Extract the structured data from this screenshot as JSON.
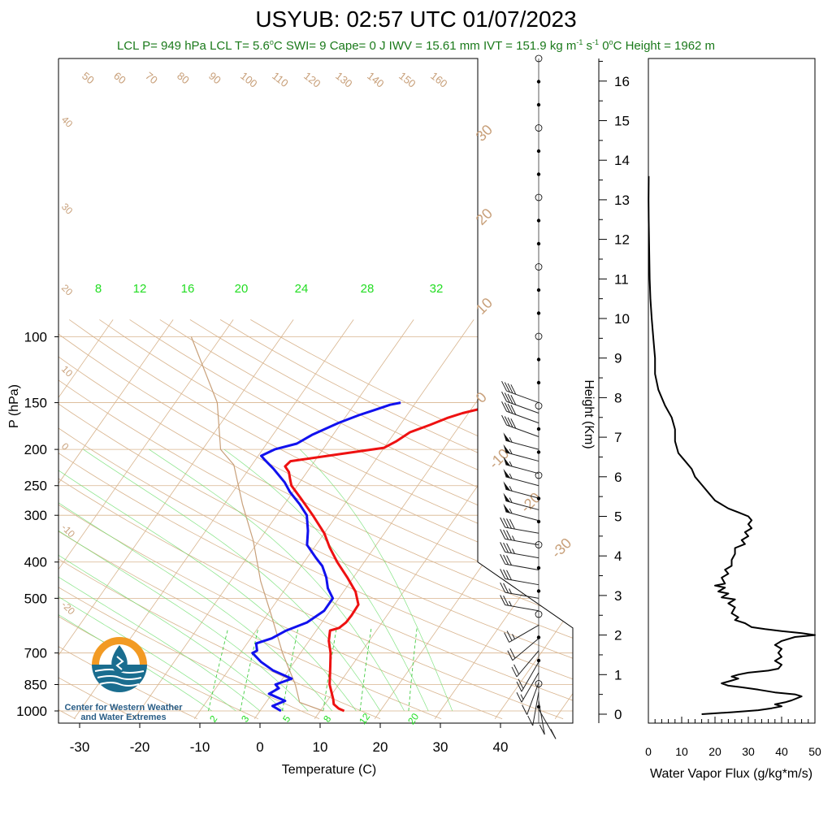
{
  "chart_data": [
    {
      "type": "line",
      "title": "USYUB: 02:57 UTC 01/07/2023",
      "subtitle_parts": [
        "LCL P= 949 hPa",
        "LCL T= 5.6",
        "o",
        "C",
        "SWI= 9",
        "Cape= 0 J",
        "IWV = 15.61 mm",
        "IVT = 151.9 kg m",
        "-1",
        " s",
        "-1",
        "0",
        "o",
        "C Height = 1962 m"
      ],
      "xlabel": "Temperature (C)",
      "ylabel": "P (hPa)",
      "x_ticks": [
        -30,
        -20,
        -10,
        0,
        10,
        20,
        30,
        40
      ],
      "y_ticks": [
        100,
        150,
        200,
        250,
        300,
        400,
        500,
        700,
        850,
        1000
      ],
      "y_scale": "log",
      "dry_adiabat_labels": [
        "50",
        "60",
        "70",
        "80",
        "90",
        "100",
        "110",
        "120",
        "130",
        "140",
        "150",
        "160"
      ],
      "isotherm_left_labels": [
        "40",
        "30",
        "20",
        "10",
        "0",
        "-10",
        "-20"
      ],
      "isotherm_right_labels": [
        "30",
        "20",
        "10",
        "0",
        "-10",
        "-20",
        "-30"
      ],
      "moist_adiabat_labels": [
        "8",
        "12",
        "16",
        "20",
        "24",
        "28",
        "32"
      ],
      "mixing_ratio_labels": [
        "2",
        "3",
        "5",
        "8",
        "12",
        "20"
      ],
      "series": [
        {
          "name": "Temperature",
          "color": "#ee1111",
          "points": [
            [
              14,
              1000
            ],
            [
              12.8,
              985
            ],
            [
              11.5,
              960
            ],
            [
              10.8,
              930
            ],
            [
              8.5,
              850
            ],
            [
              6.5,
              760
            ],
            [
              5.0,
              700
            ],
            [
              3.3,
              650
            ],
            [
              2.3,
              610
            ],
            [
              3.5,
              600
            ],
            [
              4.0,
              580
            ],
            [
              4.1,
              555
            ],
            [
              4.0,
              520
            ],
            [
              2.0,
              480
            ],
            [
              -1.0,
              440
            ],
            [
              -4.5,
              400
            ],
            [
              -7.5,
              365
            ],
            [
              -10.0,
              335
            ],
            [
              -14.0,
              300
            ],
            [
              -18.0,
              270
            ],
            [
              -21.0,
              250
            ],
            [
              -22.0,
              240
            ],
            [
              -23.0,
              230
            ],
            [
              -24.3,
              222
            ],
            [
              -24.0,
              215
            ],
            [
              -16.0,
              205
            ],
            [
              -10.0,
              198
            ],
            [
              -8.7,
              190
            ],
            [
              -7.5,
              180
            ],
            [
              -5.0,
              172
            ],
            [
              -3.0,
              165
            ],
            [
              -1.0,
              160
            ],
            [
              2.0,
              155
            ],
            [
              4.5,
              150
            ]
          ]
        },
        {
          "name": "Dewpoint",
          "color": "#1111ee",
          "points": [
            [
              3.5,
              1000
            ],
            [
              1.5,
              970
            ],
            [
              3.0,
              940
            ],
            [
              -0.5,
              900
            ],
            [
              0.5,
              870
            ],
            [
              -0.5,
              850
            ],
            [
              1.5,
              820
            ],
            [
              -2.5,
              780
            ],
            [
              -5.5,
              740
            ],
            [
              -8.0,
              700
            ],
            [
              -7.5,
              690
            ],
            [
              -8.5,
              660
            ],
            [
              -6.5,
              640
            ],
            [
              -5.0,
              610
            ],
            [
              -2.5,
              580
            ],
            [
              -1.0,
              540
            ],
            [
              -1.0,
              500
            ],
            [
              -3.0,
              470
            ],
            [
              -4.5,
              440
            ],
            [
              -6.5,
              410
            ],
            [
              -8.5,
              390
            ],
            [
              -11.5,
              360
            ],
            [
              -13.0,
              330
            ],
            [
              -15.0,
              300
            ],
            [
              -17.5,
              280
            ],
            [
              -20.5,
              260
            ],
            [
              -22.5,
              245
            ],
            [
              -26.0,
              225
            ],
            [
              -28.5,
              213
            ],
            [
              -29.5,
              208
            ],
            [
              -28.0,
              200
            ],
            [
              -25.0,
              193
            ],
            [
              -23.5,
              183
            ],
            [
              -20.5,
              170
            ],
            [
              -18.0,
              162
            ],
            [
              -16.0,
              157
            ],
            [
              -14.0,
              152
            ],
            [
              -12.5,
              150
            ]
          ]
        },
        {
          "name": "Parcel",
          "color": "#c8a07a",
          "points": [
            [
              10.5,
              1000
            ],
            [
              5.6,
              949
            ],
            [
              2.8,
              850
            ],
            [
              -3.0,
              700
            ],
            [
              -9.5,
              550
            ],
            [
              -15.0,
              450
            ],
            [
              -21.0,
              350
            ],
            [
              -27.0,
              280
            ],
            [
              -33.0,
              220
            ],
            [
              -37.0,
              200
            ],
            [
              -43.0,
              150
            ],
            [
              -55.0,
              100
            ]
          ]
        }
      ]
    },
    {
      "type": "line",
      "xlabel": "Water Vapor Flux (g/kg*m/s)",
      "ylabel": "Height (Km)",
      "x_ticks": [
        0,
        10,
        20,
        30,
        40,
        50
      ],
      "xlim": [
        0,
        50
      ],
      "y_ticks": [
        0,
        1,
        2,
        3,
        4,
        5,
        6,
        7,
        8,
        9,
        10,
        11,
        12,
        13,
        14,
        15,
        16
      ],
      "ylim": [
        0,
        16.4
      ],
      "series": [
        {
          "name": "Water Vapor Flux",
          "color": "#000000",
          "points": [
            [
              16,
              0.0
            ],
            [
              25,
              0.05
            ],
            [
              33,
              0.1
            ],
            [
              37,
              0.15
            ],
            [
              40,
              0.2
            ],
            [
              38,
              0.25
            ],
            [
              41,
              0.3
            ],
            [
              43,
              0.35
            ],
            [
              46,
              0.45
            ],
            [
              44,
              0.5
            ],
            [
              38,
              0.55
            ],
            [
              33,
              0.62
            ],
            [
              28,
              0.68
            ],
            [
              24,
              0.72
            ],
            [
              22,
              0.78
            ],
            [
              25,
              0.85
            ],
            [
              27,
              0.9
            ],
            [
              25,
              0.95
            ],
            [
              27,
              1.0
            ],
            [
              30,
              1.05
            ],
            [
              36,
              1.1
            ],
            [
              39,
              1.15
            ],
            [
              40,
              1.25
            ],
            [
              38,
              1.35
            ],
            [
              40,
              1.45
            ],
            [
              39,
              1.55
            ],
            [
              40,
              1.65
            ],
            [
              38,
              1.75
            ],
            [
              40,
              1.85
            ],
            [
              44,
              1.95
            ],
            [
              50,
              2.0
            ],
            [
              46,
              2.05
            ],
            [
              40,
              2.1
            ],
            [
              35,
              2.15
            ],
            [
              31,
              2.2
            ],
            [
              29,
              2.3
            ],
            [
              26,
              2.38
            ],
            [
              27,
              2.45
            ],
            [
              25,
              2.55
            ],
            [
              26,
              2.7
            ],
            [
              24,
              2.8
            ],
            [
              26,
              2.9
            ],
            [
              22,
              2.95
            ],
            [
              24,
              3.05
            ],
            [
              21,
              3.1
            ],
            [
              23,
              3.2
            ],
            [
              20,
              3.25
            ],
            [
              23,
              3.3
            ],
            [
              22,
              3.45
            ],
            [
              24,
              3.55
            ],
            [
              23,
              3.65
            ],
            [
              25,
              3.75
            ],
            [
              25,
              3.9
            ],
            [
              26,
              4.05
            ],
            [
              26,
              4.2
            ],
            [
              29,
              4.3
            ],
            [
              28,
              4.4
            ],
            [
              30,
              4.5
            ],
            [
              29,
              4.6
            ],
            [
              31,
              4.7
            ],
            [
              30,
              4.8
            ],
            [
              31,
              4.9
            ],
            [
              30,
              5.0
            ],
            [
              27,
              5.1
            ],
            [
              24,
              5.2
            ],
            [
              22,
              5.3
            ],
            [
              20,
              5.4
            ],
            [
              18,
              5.6
            ],
            [
              16,
              5.8
            ],
            [
              14,
              6.0
            ],
            [
              13,
              6.2
            ],
            [
              11,
              6.4
            ],
            [
              9,
              6.6
            ],
            [
              8,
              6.9
            ],
            [
              8,
              7.2
            ],
            [
              7,
              7.5
            ],
            [
              5,
              7.8
            ],
            [
              3,
              8.2
            ],
            [
              2,
              8.6
            ],
            [
              2,
              9.0
            ],
            [
              1.5,
              9.5
            ],
            [
              1,
              10.0
            ],
            [
              0.6,
              10.5
            ],
            [
              0.4,
              11.0
            ],
            [
              0.3,
              11.5
            ],
            [
              0.2,
              12.0
            ],
            [
              0.1,
              12.5
            ],
            [
              0.05,
              13.0
            ],
            [
              0.1,
              13.6
            ]
          ]
        }
      ]
    }
  ],
  "wind_barbs": [
    {
      "p": 150,
      "speed_kt": 40,
      "dir_deg": 290
    },
    {
      "p": 160,
      "speed_kt": 40,
      "dir_deg": 290
    },
    {
      "p": 170,
      "speed_kt": 40,
      "dir_deg": 290
    },
    {
      "p": 185,
      "speed_kt": 40,
      "dir_deg": 290
    },
    {
      "p": 200,
      "speed_kt": 55,
      "dir_deg": 285
    },
    {
      "p": 215,
      "speed_kt": 55,
      "dir_deg": 285
    },
    {
      "p": 232,
      "speed_kt": 55,
      "dir_deg": 285
    },
    {
      "p": 250,
      "speed_kt": 55,
      "dir_deg": 285
    },
    {
      "p": 270,
      "speed_kt": 55,
      "dir_deg": 285
    },
    {
      "p": 290,
      "speed_kt": 55,
      "dir_deg": 285
    },
    {
      "p": 310,
      "speed_kt": 55,
      "dir_deg": 285
    },
    {
      "p": 335,
      "speed_kt": 40,
      "dir_deg": 280
    },
    {
      "p": 360,
      "speed_kt": 35,
      "dir_deg": 280
    },
    {
      "p": 390,
      "speed_kt": 35,
      "dir_deg": 280
    },
    {
      "p": 420,
      "speed_kt": 30,
      "dir_deg": 280
    },
    {
      "p": 460,
      "speed_kt": 30,
      "dir_deg": 280
    },
    {
      "p": 500,
      "speed_kt": 25,
      "dir_deg": 280
    },
    {
      "p": 540,
      "speed_kt": 25,
      "dir_deg": 280
    },
    {
      "p": 590,
      "speed_kt": 25,
      "dir_deg": 240
    },
    {
      "p": 640,
      "speed_kt": 20,
      "dir_deg": 230
    },
    {
      "p": 690,
      "speed_kt": 20,
      "dir_deg": 220
    },
    {
      "p": 740,
      "speed_kt": 20,
      "dir_deg": 210
    },
    {
      "p": 790,
      "speed_kt": 15,
      "dir_deg": 210
    },
    {
      "p": 840,
      "speed_kt": 10,
      "dir_deg": 200
    },
    {
      "p": 890,
      "speed_kt": 10,
      "dir_deg": 190
    },
    {
      "p": 940,
      "speed_kt": 10,
      "dir_deg": 170
    },
    {
      "p": 990,
      "speed_kt": 10,
      "dir_deg": 150
    }
  ],
  "logo": {
    "line1": "Center for Western Weather",
    "line2": "and Water Extremes",
    "colors": {
      "orange": "#f29a23",
      "teal": "#1a6d8f",
      "light": "#8fc5dd"
    }
  },
  "colors": {
    "dry_adiabat": "#d8b48e",
    "isotherm": "#d8b48e",
    "moist_adiabat": "#66dd66",
    "mixing_ratio": "#44cc44",
    "label_green": "#22dd22",
    "label_tan": "#c8a07a"
  }
}
